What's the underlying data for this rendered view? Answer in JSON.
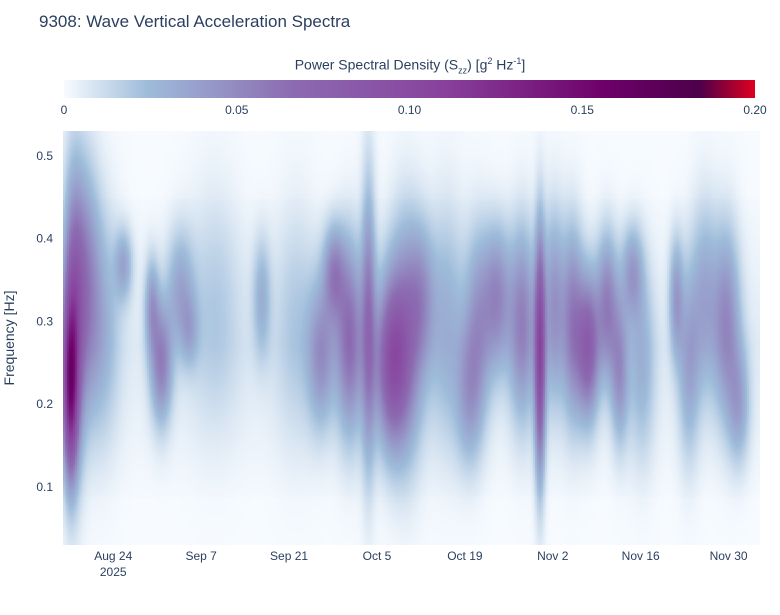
{
  "title": "9308: Wave Vertical Acceleration Spectra",
  "colorbar": {
    "title_main": "Power Spectral Density (S",
    "title_sub": "zz",
    "title_mid": ") [g",
    "title_sup1": "2",
    "title_hz": " Hz",
    "title_sup2": "-1",
    "title_end": "]",
    "range": [
      0,
      0.2
    ],
    "ticks": [
      {
        "value": 0,
        "label": "0"
      },
      {
        "value": 0.05,
        "label": "0.05"
      },
      {
        "value": 0.1,
        "label": "0.10"
      },
      {
        "value": 0.15,
        "label": "0.15"
      },
      {
        "value": 0.2,
        "label": "0.20"
      }
    ],
    "colors": [
      "#f7fbff",
      "#9ebcda",
      "#8c6bb1",
      "#88419d",
      "#6e016b",
      "#4d004b",
      "#e0001e"
    ]
  },
  "chart_data": {
    "type": "heatmap",
    "title": "9308: Wave Vertical Acceleration Spectra",
    "xlabel": "",
    "ylabel": "Frequency [Hz]",
    "x_start": "2025-08-16",
    "x_end": "2025-12-05",
    "x_days": 111,
    "ylim": [
      0.03,
      0.53
    ],
    "z_range": [
      0,
      0.2
    ],
    "x_ticks": [
      {
        "day": 8,
        "label": "Aug 24",
        "sublabel": "2025"
      },
      {
        "day": 22,
        "label": "Sep 7"
      },
      {
        "day": 36,
        "label": "Sep 21"
      },
      {
        "day": 50,
        "label": "Oct 5"
      },
      {
        "day": 64,
        "label": "Oct 19"
      },
      {
        "day": 78,
        "label": "Nov 2"
      },
      {
        "day": 92,
        "label": "Nov 16"
      },
      {
        "day": 106,
        "label": "Nov 30"
      }
    ],
    "y_ticks": [
      {
        "value": 0.1,
        "label": "0.1"
      },
      {
        "value": 0.2,
        "label": "0.2"
      },
      {
        "value": 0.3,
        "label": "0.3"
      },
      {
        "value": 0.4,
        "label": "0.4"
      },
      {
        "value": 0.5,
        "label": "0.5"
      }
    ],
    "energy_blobs": [
      {
        "day": 1.0,
        "freq": 0.22,
        "psd": 0.1,
        "sd_day": 0.8,
        "sd_freq": 0.07
      },
      {
        "day": 1.5,
        "freq": 0.3,
        "psd": 0.07,
        "sd_day": 1.2,
        "sd_freq": 0.12
      },
      {
        "day": 3.5,
        "freq": 0.35,
        "psd": 0.04,
        "sd_day": 1.5,
        "sd_freq": 0.1
      },
      {
        "day": 6.0,
        "freq": 0.3,
        "psd": 0.025,
        "sd_day": 2.0,
        "sd_freq": 0.1
      },
      {
        "day": 9.5,
        "freq": 0.37,
        "psd": 0.03,
        "sd_day": 1.0,
        "sd_freq": 0.03
      },
      {
        "day": 14.0,
        "freq": 0.32,
        "psd": 0.035,
        "sd_day": 0.8,
        "sd_freq": 0.04
      },
      {
        "day": 15.5,
        "freq": 0.25,
        "psd": 0.05,
        "sd_day": 1.2,
        "sd_freq": 0.05
      },
      {
        "day": 18.5,
        "freq": 0.34,
        "psd": 0.03,
        "sd_day": 1.5,
        "sd_freq": 0.05
      },
      {
        "day": 20.0,
        "freq": 0.29,
        "psd": 0.02,
        "sd_day": 1.0,
        "sd_freq": 0.03
      },
      {
        "day": 24.0,
        "freq": 0.32,
        "psd": 0.015,
        "sd_day": 3.0,
        "sd_freq": 0.1
      },
      {
        "day": 31.5,
        "freq": 0.33,
        "psd": 0.025,
        "sd_day": 1.0,
        "sd_freq": 0.05
      },
      {
        "day": 37.0,
        "freq": 0.3,
        "psd": 0.015,
        "sd_day": 2.5,
        "sd_freq": 0.1
      },
      {
        "day": 41.0,
        "freq": 0.26,
        "psd": 0.04,
        "sd_day": 1.5,
        "sd_freq": 0.06
      },
      {
        "day": 43.0,
        "freq": 0.36,
        "psd": 0.045,
        "sd_day": 1.2,
        "sd_freq": 0.04
      },
      {
        "day": 45.5,
        "freq": 0.28,
        "psd": 0.06,
        "sd_day": 1.5,
        "sd_freq": 0.08
      },
      {
        "day": 48.5,
        "freq": 0.3,
        "psd": 0.05,
        "sd_day": 0.8,
        "sd_freq": 0.12
      },
      {
        "day": 52.0,
        "freq": 0.25,
        "psd": 0.07,
        "sd_day": 1.8,
        "sd_freq": 0.07
      },
      {
        "day": 54.5,
        "freq": 0.28,
        "psd": 0.05,
        "sd_day": 2.0,
        "sd_freq": 0.1
      },
      {
        "day": 57.0,
        "freq": 0.33,
        "psd": 0.03,
        "sd_day": 1.5,
        "sd_freq": 0.06
      },
      {
        "day": 61.0,
        "freq": 0.3,
        "psd": 0.025,
        "sd_day": 2.0,
        "sd_freq": 0.1
      },
      {
        "day": 64.5,
        "freq": 0.21,
        "psd": 0.03,
        "sd_day": 1.5,
        "sd_freq": 0.06
      },
      {
        "day": 66.0,
        "freq": 0.3,
        "psd": 0.035,
        "sd_day": 1.5,
        "sd_freq": 0.08
      },
      {
        "day": 69.0,
        "freq": 0.33,
        "psd": 0.045,
        "sd_day": 1.5,
        "sd_freq": 0.06
      },
      {
        "day": 73.0,
        "freq": 0.3,
        "psd": 0.05,
        "sd_day": 1.5,
        "sd_freq": 0.08
      },
      {
        "day": 75.8,
        "freq": 0.26,
        "psd": 0.09,
        "sd_day": 0.6,
        "sd_freq": 0.1
      },
      {
        "day": 78.0,
        "freq": 0.32,
        "psd": 0.04,
        "sd_day": 1.2,
        "sd_freq": 0.08
      },
      {
        "day": 81.0,
        "freq": 0.3,
        "psd": 0.05,
        "sd_day": 1.2,
        "sd_freq": 0.08
      },
      {
        "day": 83.5,
        "freq": 0.27,
        "psd": 0.07,
        "sd_day": 1.2,
        "sd_freq": 0.06
      },
      {
        "day": 86.5,
        "freq": 0.32,
        "psd": 0.05,
        "sd_day": 1.2,
        "sd_freq": 0.06
      },
      {
        "day": 88.5,
        "freq": 0.24,
        "psd": 0.04,
        "sd_day": 1.0,
        "sd_freq": 0.06
      },
      {
        "day": 90.5,
        "freq": 0.36,
        "psd": 0.035,
        "sd_day": 1.2,
        "sd_freq": 0.04
      },
      {
        "day": 92.0,
        "freq": 0.25,
        "psd": 0.025,
        "sd_day": 1.5,
        "sd_freq": 0.08
      },
      {
        "day": 97.5,
        "freq": 0.33,
        "psd": 0.035,
        "sd_day": 0.8,
        "sd_freq": 0.05
      },
      {
        "day": 99.5,
        "freq": 0.25,
        "psd": 0.03,
        "sd_day": 1.2,
        "sd_freq": 0.08
      },
      {
        "day": 102.0,
        "freq": 0.33,
        "psd": 0.03,
        "sd_day": 1.5,
        "sd_freq": 0.08
      },
      {
        "day": 105.5,
        "freq": 0.3,
        "psd": 0.045,
        "sd_day": 1.5,
        "sd_freq": 0.08
      },
      {
        "day": 107.5,
        "freq": 0.2,
        "psd": 0.03,
        "sd_day": 1.2,
        "sd_freq": 0.05
      }
    ]
  }
}
